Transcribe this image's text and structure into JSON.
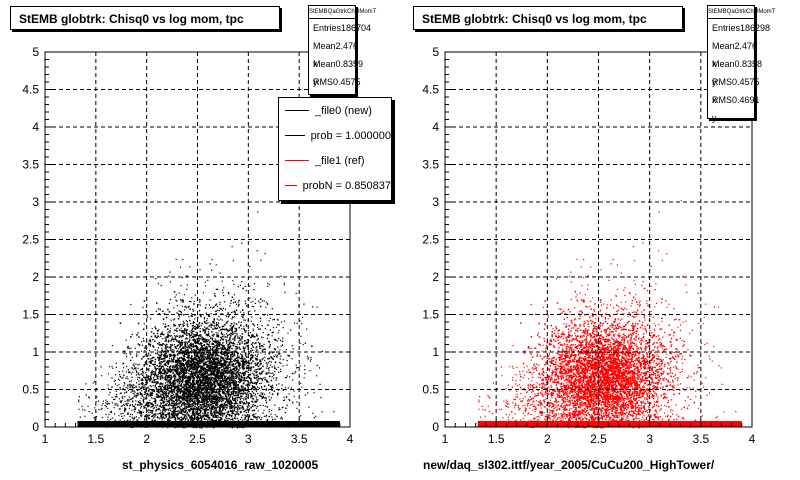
{
  "chart_data": [
    {
      "type": "scatter",
      "title": "StEMB globtrk: Chisq0 vs log mom, tpc",
      "xlabel": "st_physics_6054016_raw_1020005",
      "xlim": [
        1,
        4
      ],
      "ylim": [
        0,
        5
      ],
      "xticks": [
        "1",
        "1.5",
        "2",
        "2.5",
        "3",
        "3.5",
        "4"
      ],
      "yticks": [
        "0",
        "0.5",
        "1",
        "1.5",
        "2",
        "2.5",
        "3",
        "3.5",
        "4",
        "4.5",
        "5"
      ],
      "grid": true,
      "color": "#000000",
      "stats": {
        "name": "StEMBQaGtrkChi0MomT",
        "rows": [
          {
            "label": "Entries",
            "value": "186704"
          },
          {
            "label": "Mean x",
            "value": "2.476"
          },
          {
            "label": "Mean y",
            "value": "0.8359"
          },
          {
            "label": "RMS x",
            "value": "0.4575"
          }
        ]
      },
      "legend": {
        "placement": "top-right",
        "entries": [
          {
            "label": "_file0 (new)",
            "color": "#000000"
          },
          {
            "label": "prob = 1.000000",
            "color": "#000000"
          },
          {
            "label": "_file1 (ref)",
            "color": "#ff0000"
          },
          {
            "label": "probN = 0.850837",
            "color": "#ff0000"
          }
        ]
      }
    },
    {
      "type": "scatter",
      "title": "StEMB globtrk: Chisq0 vs log mom, tpc",
      "xlabel": "new/daq_sl302.ittf/year_2005/CuCu200_HighTower/",
      "xlim": [
        1,
        4
      ],
      "ylim": [
        0,
        5
      ],
      "xticks": [
        "1",
        "1.5",
        "2",
        "2.5",
        "3",
        "3.5",
        "4"
      ],
      "yticks": [
        "0",
        "0.5",
        "1",
        "1.5",
        "2",
        "2.5",
        "3",
        "3.5",
        "4",
        "4.5",
        "5"
      ],
      "grid": true,
      "color": "#ff0000",
      "stats": {
        "name": "StEMBQaGtrkChi0MomT",
        "rows": [
          {
            "label": "Entries",
            "value": "186298"
          },
          {
            "label": "Mean x",
            "value": "2.476"
          },
          {
            "label": "Mean y",
            "value": "0.8358"
          },
          {
            "label": "RMS x",
            "value": "0.4575"
          },
          {
            "label": "RMS y",
            "value": "0.4691"
          }
        ]
      }
    }
  ]
}
